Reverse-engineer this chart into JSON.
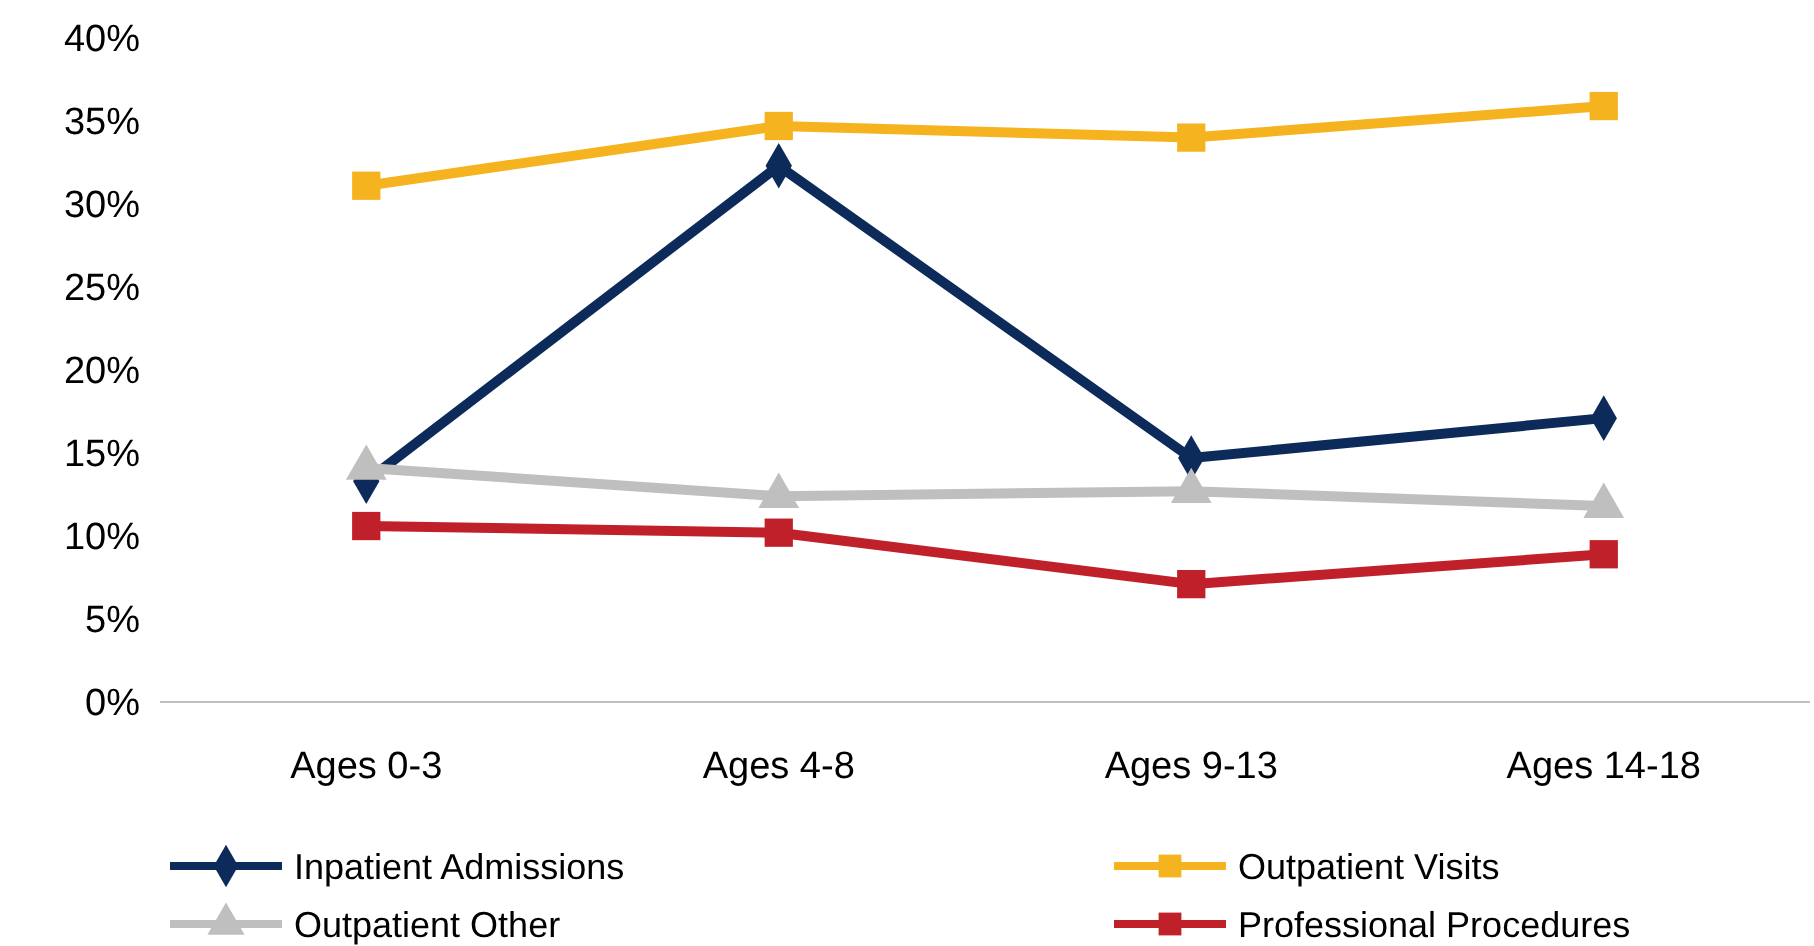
{
  "chart_data": {
    "type": "line",
    "categories": [
      "Ages 0-3",
      "Ages 4-8",
      "Ages 9-13",
      "Ages 14-18"
    ],
    "ylim": [
      0,
      40
    ],
    "yticks": [
      {
        "value": 0,
        "label": "0%"
      },
      {
        "value": 5,
        "label": "5%"
      },
      {
        "value": 10,
        "label": "10%"
      },
      {
        "value": 15,
        "label": "15%"
      },
      {
        "value": 20,
        "label": "20%"
      },
      {
        "value": 25,
        "label": "25%"
      },
      {
        "value": 30,
        "label": "30%"
      },
      {
        "value": 35,
        "label": "35%"
      },
      {
        "value": 40,
        "label": "40%"
      }
    ],
    "grid": false,
    "legend": "bottom",
    "series": [
      {
        "name": "Inpatient Admissions",
        "color": "#0d2b5a",
        "marker": "diamond",
        "values": [
          13.3,
          32.3,
          14.7,
          17.1
        ]
      },
      {
        "name": "Outpatient Visits",
        "color": "#f5b320",
        "marker": "square",
        "values": [
          31.1,
          34.7,
          34.0,
          35.9
        ]
      },
      {
        "name": "Outpatient Other",
        "color": "#bfbfbf",
        "marker": "triangle",
        "values": [
          14.1,
          12.4,
          12.7,
          11.8
        ]
      },
      {
        "name": "Professional Procedures",
        "color": "#c0202a",
        "marker": "square",
        "values": [
          10.6,
          10.2,
          7.1,
          8.9
        ]
      }
    ]
  }
}
